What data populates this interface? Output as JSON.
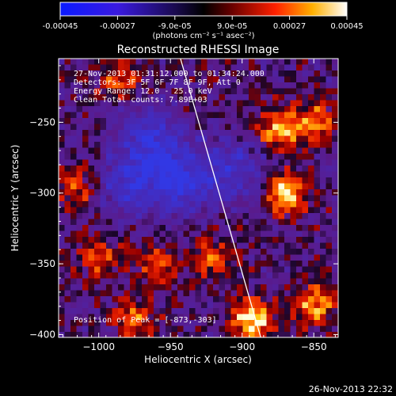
{
  "colorbar": {
    "ticks": [
      "-0.00045",
      "-0.00027",
      "-9.0e-05",
      "9.0e-05",
      "0.00027",
      "0.00045"
    ],
    "unit_label": "(photons cm⁻² s⁻¹ asec⁻²)",
    "range": [
      -0.00045,
      0.00045
    ],
    "colormap": "IDL rainbow/hot (blue-purple negative, red-yellow-white positive)"
  },
  "chart_data": {
    "type": "heatmap",
    "title": "Reconstructed RHESSI Image",
    "xlabel": "Heliocentric X (arcsec)",
    "ylabel": "Heliocentric Y (arcsec)",
    "xlim": [
      -1028,
      -833
    ],
    "ylim": [
      -402,
      -205
    ],
    "x_ticks": [
      -1000,
      -950,
      -900,
      -850
    ],
    "x_tick_labels": [
      "−1000",
      "−950",
      "−900",
      "−850"
    ],
    "y_ticks": [
      -250,
      -300,
      -350,
      -400
    ],
    "y_tick_labels": [
      "−250",
      "−300",
      "−350",
      "−400"
    ],
    "annotations": {
      "time": "27-Nov-2013 01:31:12.000 to 01:34:24.000",
      "detectors": "Detectors: 3F 5F 6F 7F 8F 9F, Att 0",
      "energy": "Energy Range: 12.0 - 25.0 keV",
      "clean": "Clean     Total counts: 7.89E+03",
      "peak": "Position of Peak = [-873,-303]"
    },
    "peak_position": [
      -873,
      -303
    ],
    "limb_line": [
      [
        -943,
        -205
      ],
      [
        -887,
        -402
      ]
    ],
    "bright_regions": [
      {
        "x": -975,
        "y": -388,
        "level": 0.6
      },
      {
        "x": -1000,
        "y": -345,
        "level": 0.5
      },
      {
        "x": -960,
        "y": -350,
        "level": 0.55
      },
      {
        "x": -893,
        "y": -390,
        "level": 1.0
      },
      {
        "x": -870,
        "y": -300,
        "level": 0.95
      },
      {
        "x": -875,
        "y": -255,
        "level": 0.75
      },
      {
        "x": -850,
        "y": -250,
        "level": 0.7
      },
      {
        "x": -850,
        "y": -380,
        "level": 0.75
      },
      {
        "x": -920,
        "y": -345,
        "level": 0.55
      },
      {
        "x": -1015,
        "y": -295,
        "level": 0.5
      },
      {
        "x": -985,
        "y": -220,
        "level": 0.55
      }
    ],
    "dark_regions": [
      {
        "x": -945,
        "y": -290,
        "level": 0.9
      },
      {
        "x": -965,
        "y": -260,
        "level": 0.7
      },
      {
        "x": -980,
        "y": -295,
        "level": 0.6
      },
      {
        "x": -905,
        "y": -285,
        "level": 0.6
      }
    ]
  },
  "footer": {
    "timestamp": "26-Nov-2013 22:32"
  }
}
